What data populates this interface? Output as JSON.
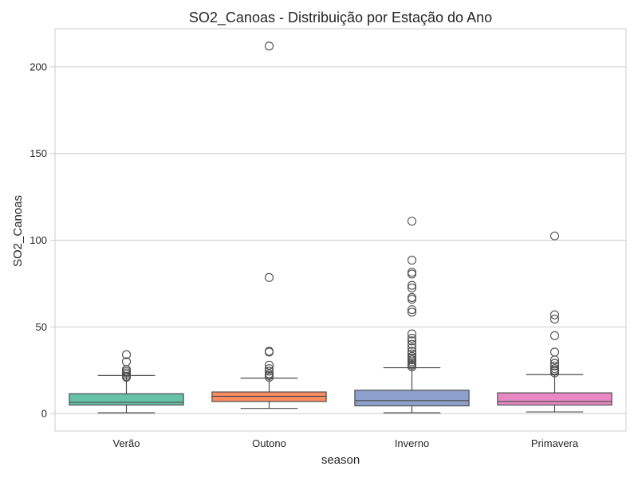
{
  "chart_data": {
    "type": "boxplot",
    "title": "SO2_Canoas - Distribuição por Estação do Ano",
    "xlabel": "season",
    "ylabel": "SO2_Canoas",
    "ylim": [
      -10,
      222
    ],
    "yticks": [
      0,
      50,
      100,
      150,
      200
    ],
    "grid": true,
    "categories": [
      "Verão",
      "Outono",
      "Inverno",
      "Primavera"
    ],
    "colors": [
      "#66c2a5",
      "#fc8d62",
      "#8da0cb",
      "#e78ac3"
    ],
    "boxes": [
      {
        "category": "Verão",
        "whisker_low": 0.5,
        "q1": 5,
        "median": 6.5,
        "q3": 11.5,
        "whisker_high": 22,
        "outliers": [
          21,
          21.5,
          22.5,
          23.5,
          24.5,
          25.5,
          30,
          34
        ]
      },
      {
        "category": "Outono",
        "whisker_low": 3,
        "q1": 7,
        "median": 10,
        "q3": 12.5,
        "whisker_high": 20.5,
        "outliers": [
          21,
          22,
          23,
          24.5,
          26,
          28,
          35.5,
          36,
          78.5,
          212
        ]
      },
      {
        "category": "Inverno",
        "whisker_low": 0.5,
        "q1": 4.5,
        "median": 7.5,
        "q3": 13.5,
        "whisker_high": 26.5,
        "outliers": [
          27,
          28,
          29,
          30,
          31,
          32,
          33,
          34.5,
          36,
          38,
          40,
          42,
          43.5,
          46,
          58.5,
          60,
          66,
          67,
          72.5,
          74,
          80.5,
          81.5,
          88.5,
          111
        ]
      },
      {
        "category": "Primavera",
        "whisker_low": 1,
        "q1": 5,
        "median": 7,
        "q3": 12,
        "whisker_high": 22.5,
        "outliers": [
          23.5,
          24.5,
          25,
          26,
          27.5,
          29,
          31,
          35.5,
          45,
          54.5,
          57,
          102.5
        ]
      }
    ]
  }
}
